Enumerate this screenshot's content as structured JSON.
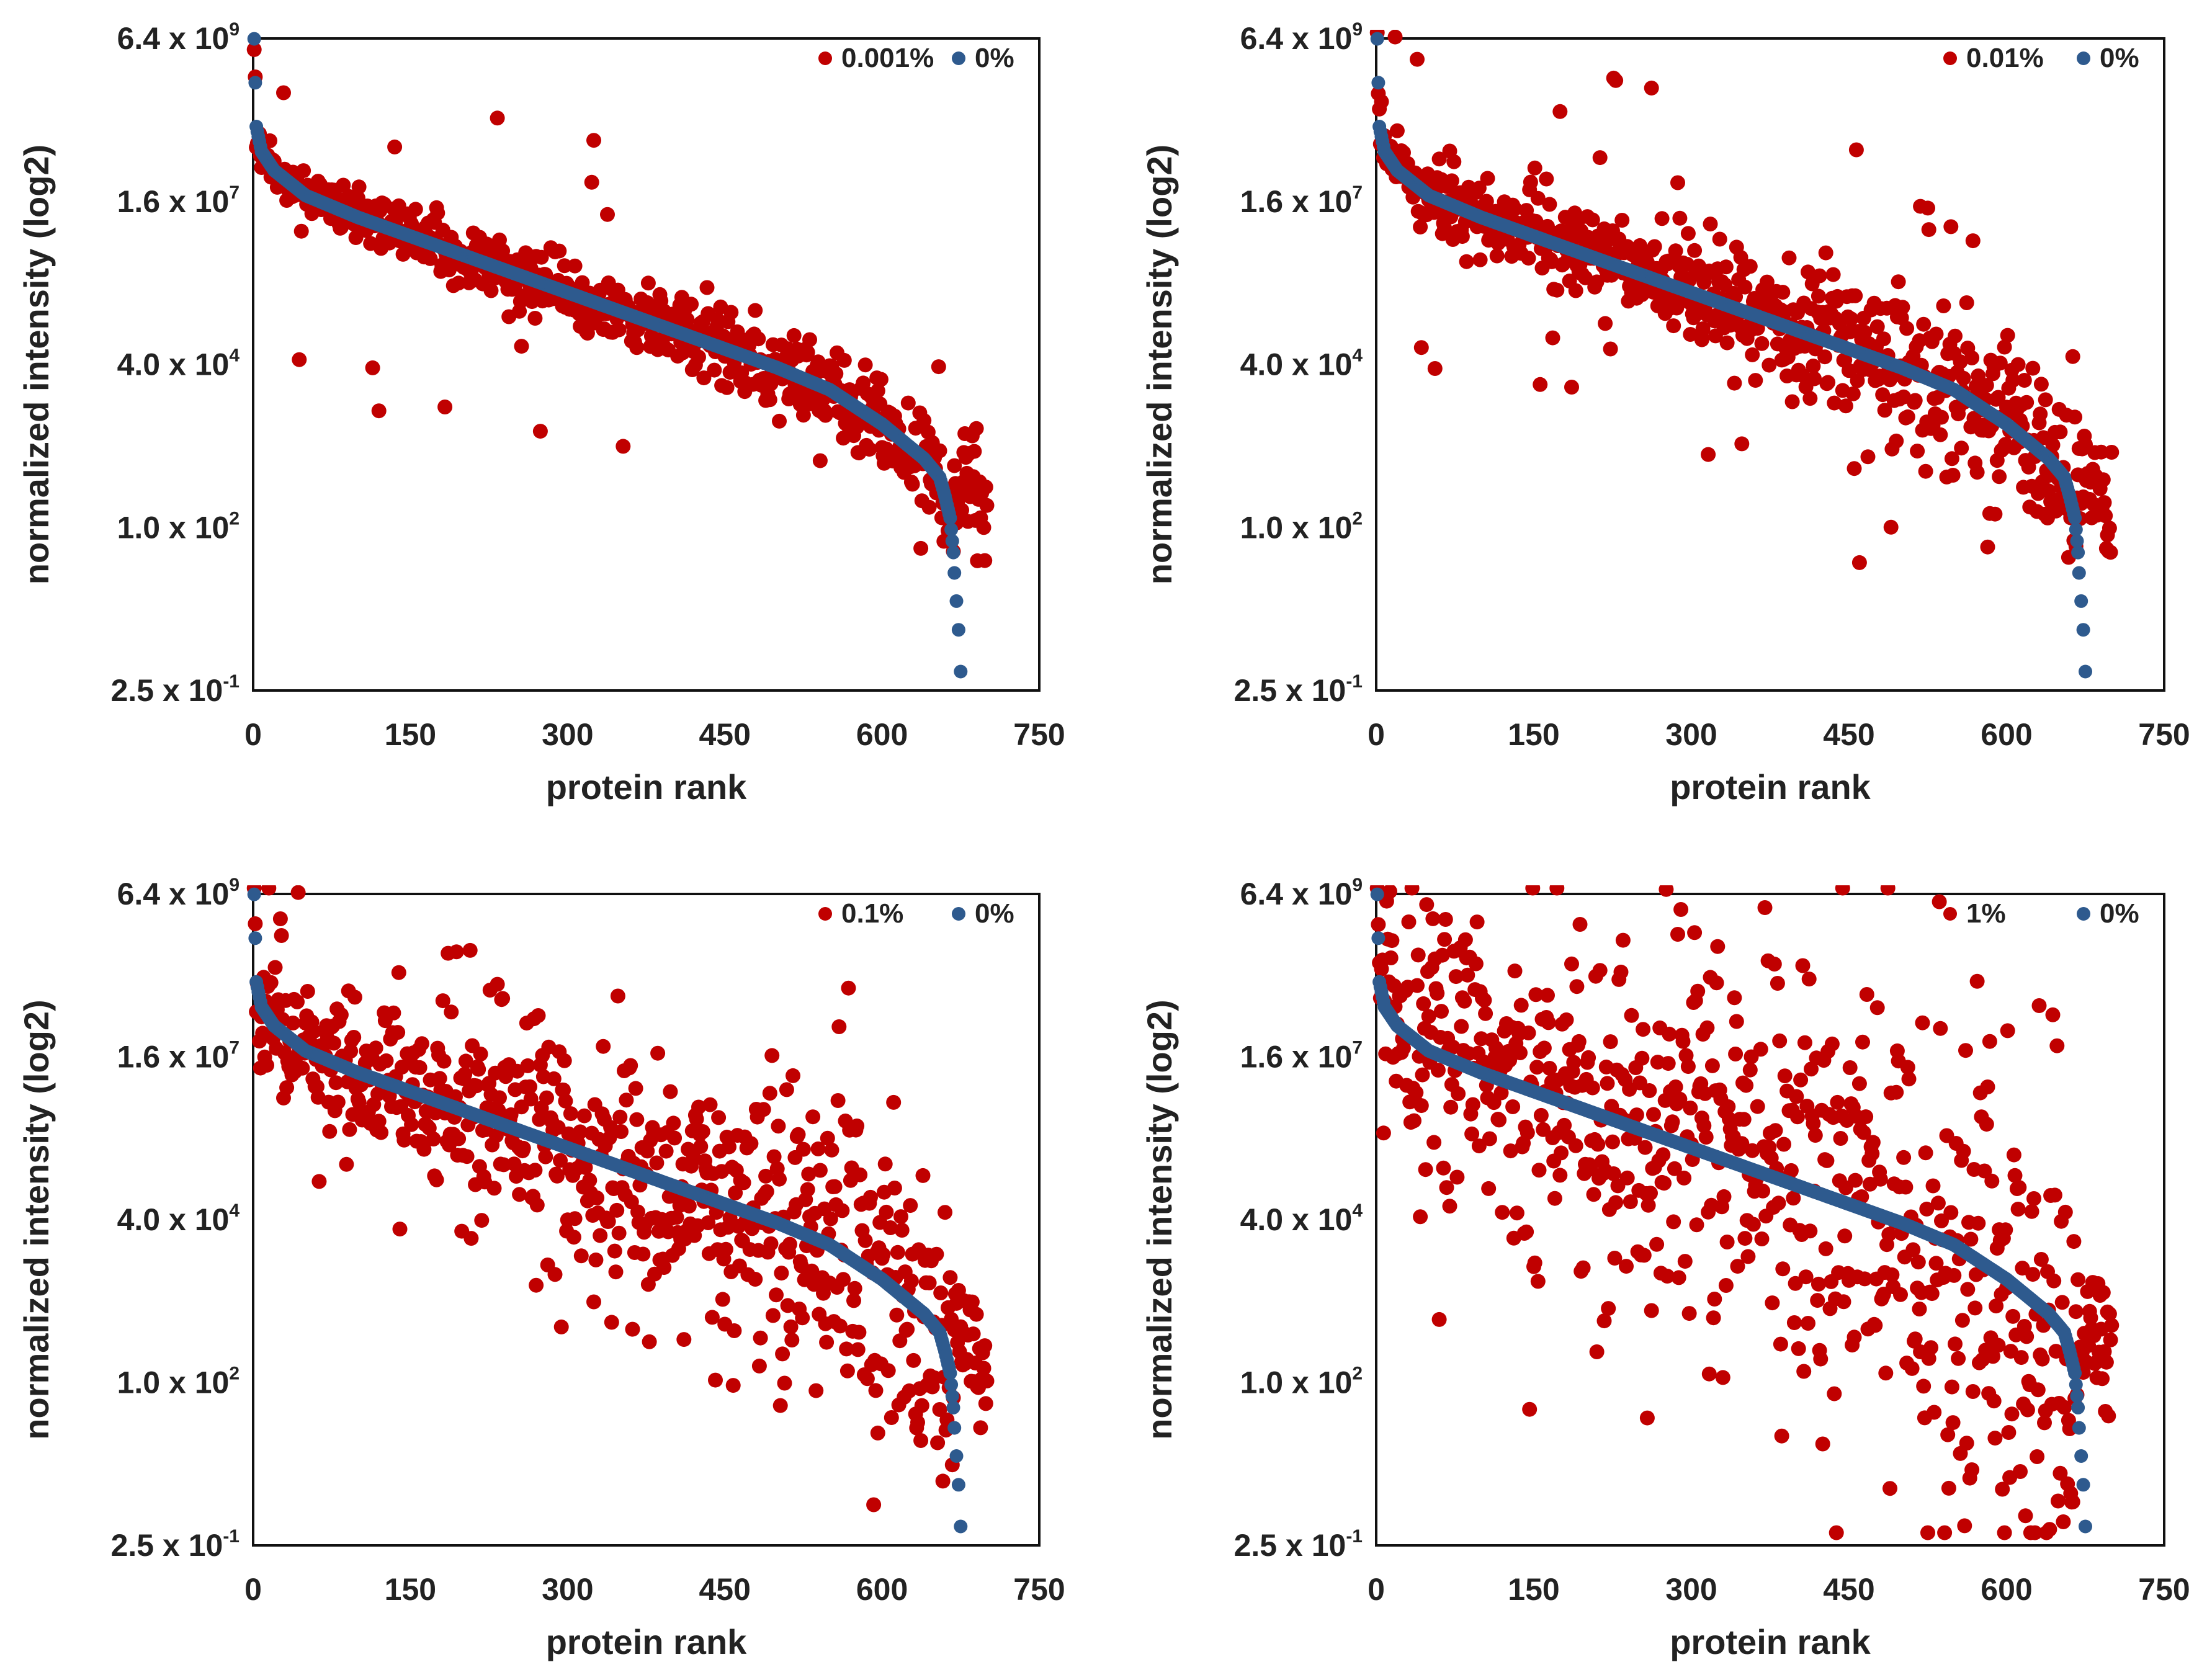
{
  "colors": {
    "series_treated": "#c00000",
    "series_control": "#2e5a8e",
    "axis": "#111111"
  },
  "chart_data": [
    {
      "type": "scatter",
      "panel": "top-left",
      "title": "",
      "xlabel": "protein rank",
      "ylabel": "normalized intensity (log2)",
      "xlim": [
        0,
        750
      ],
      "xticks": [
        "0",
        "150",
        "300",
        "450",
        "600",
        "750"
      ],
      "ylim_log10": [
        -0.602,
        9.806
      ],
      "yticks": [
        {
          "mantissa": "6.4 x 10",
          "exp": "9"
        },
        {
          "mantissa": "1.6 x 10",
          "exp": "7"
        },
        {
          "mantissa": "4.0 x 10",
          "exp": "4"
        },
        {
          "mantissa": "1.0 x 10",
          "exp": "2"
        },
        {
          "mantissa": "2.5 x 10",
          "exp": "-1"
        }
      ],
      "legend_position": "top-right",
      "series": [
        {
          "name": "0.001%",
          "color_key": "series_treated",
          "noise": 0.3,
          "outlier_rate": 0.02,
          "seed": 11
        },
        {
          "name": "0%",
          "color_key": "series_control"
        }
      ]
    },
    {
      "type": "scatter",
      "panel": "top-right",
      "title": "",
      "xlabel": "protein rank",
      "ylabel": "normalized intensity (log2)",
      "xlim": [
        0,
        750
      ],
      "xticks": [
        "0",
        "150",
        "300",
        "450",
        "600",
        "750"
      ],
      "ylim_log10": [
        -0.602,
        9.806
      ],
      "yticks": [
        {
          "mantissa": "6.4 x 10",
          "exp": "9"
        },
        {
          "mantissa": "1.6 x 10",
          "exp": "7"
        },
        {
          "mantissa": "4.0 x 10",
          "exp": "4"
        },
        {
          "mantissa": "1.0 x 10",
          "exp": "2"
        },
        {
          "mantissa": "2.5 x 10",
          "exp": "-1"
        }
      ],
      "legend_position": "top-right",
      "series": [
        {
          "name": "0.01%",
          "color_key": "series_treated",
          "noise": 0.5,
          "outlier_rate": 0.04,
          "seed": 23
        },
        {
          "name": "0%",
          "color_key": "series_control"
        }
      ]
    },
    {
      "type": "scatter",
      "panel": "bottom-left",
      "title": "",
      "xlabel": "protein rank",
      "ylabel": "normalized intensity (log2)",
      "xlim": [
        0,
        750
      ],
      "xticks": [
        "0",
        "150",
        "300",
        "450",
        "600",
        "750"
      ],
      "ylim_log10": [
        -0.602,
        9.806
      ],
      "yticks": [
        {
          "mantissa": "6.4 x 10",
          "exp": "9"
        },
        {
          "mantissa": "1.6 x 10",
          "exp": "7"
        },
        {
          "mantissa": "4.0 x 10",
          "exp": "4"
        },
        {
          "mantissa": "1.0 x 10",
          "exp": "2"
        },
        {
          "mantissa": "2.5 x 10",
          "exp": "-1"
        }
      ],
      "legend_position": "top-right",
      "series": [
        {
          "name": "0.1%",
          "color_key": "series_treated",
          "noise": 1.0,
          "outlier_rate": 0.06,
          "seed": 37
        },
        {
          "name": "0%",
          "color_key": "series_control"
        }
      ]
    },
    {
      "type": "scatter",
      "panel": "bottom-right",
      "title": "",
      "xlabel": "protein rank",
      "ylabel": "normalized intensity (log2)",
      "xlim": [
        0,
        750
      ],
      "xticks": [
        "0",
        "150",
        "300",
        "450",
        "600",
        "750"
      ],
      "ylim_log10": [
        -0.602,
        9.806
      ],
      "yticks": [
        {
          "mantissa": "6.4 x 10",
          "exp": "9"
        },
        {
          "mantissa": "1.6 x 10",
          "exp": "7"
        },
        {
          "mantissa": "4.0 x 10",
          "exp": "4"
        },
        {
          "mantissa": "1.0 x 10",
          "exp": "2"
        },
        {
          "mantissa": "2.5 x 10",
          "exp": "-1"
        }
      ],
      "legend_position": "top-right",
      "series": [
        {
          "name": "1%",
          "color_key": "series_treated",
          "noise": 1.9,
          "outlier_rate": 0.05,
          "seed": 53
        },
        {
          "name": "0%",
          "color_key": "series_control"
        }
      ]
    }
  ]
}
